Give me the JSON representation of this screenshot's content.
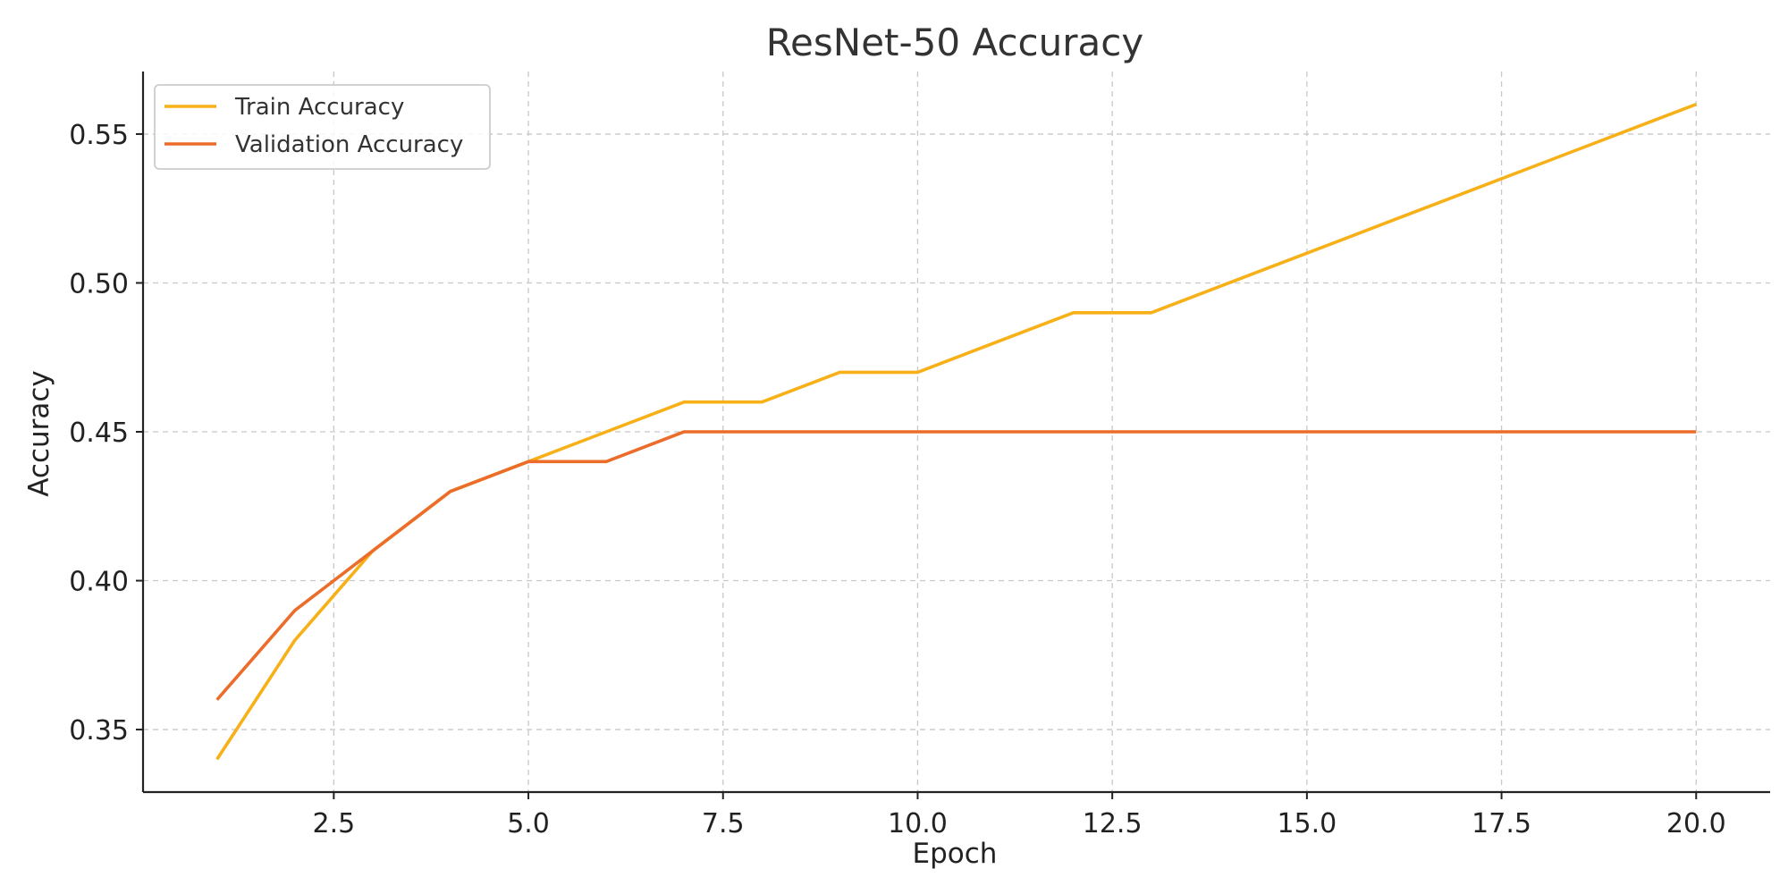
{
  "chart_data": {
    "type": "line",
    "title": "ResNet-50 Accuracy",
    "xlabel": "Epoch",
    "ylabel": "Accuracy",
    "xlim": [
      0.05,
      20.95
    ],
    "ylim": [
      0.329,
      0.571
    ],
    "xticks": [
      2.5,
      5.0,
      7.5,
      10.0,
      12.5,
      15.0,
      17.5,
      20.0
    ],
    "xtick_labels": [
      "2.5",
      "5.0",
      "7.5",
      "10.0",
      "12.5",
      "15.0",
      "17.5",
      "20.0"
    ],
    "yticks": [
      0.35,
      0.4,
      0.45,
      0.5,
      0.55
    ],
    "ytick_labels": [
      "0.35",
      "0.40",
      "0.45",
      "0.50",
      "0.55"
    ],
    "grid": true,
    "legend_position": "top-left",
    "x": [
      1,
      2,
      3,
      4,
      5,
      6,
      7,
      8,
      9,
      10,
      11,
      12,
      13,
      14,
      15,
      16,
      17,
      18,
      19,
      20
    ],
    "series": [
      {
        "name": "Train Accuracy",
        "color": "#f7b017",
        "values": [
          0.34,
          0.38,
          0.41,
          0.43,
          0.44,
          0.45,
          0.46,
          0.46,
          0.47,
          0.47,
          0.48,
          0.49,
          0.49,
          0.5,
          0.51,
          0.52,
          0.53,
          0.54,
          0.55,
          0.56
        ]
      },
      {
        "name": "Validation Accuracy",
        "color": "#ec6c2a",
        "values": [
          0.36,
          0.39,
          0.41,
          0.43,
          0.44,
          0.44,
          0.45,
          0.45,
          0.45,
          0.45,
          0.45,
          0.45,
          0.45,
          0.45,
          0.45,
          0.45,
          0.45,
          0.45,
          0.45,
          0.45
        ]
      }
    ]
  }
}
